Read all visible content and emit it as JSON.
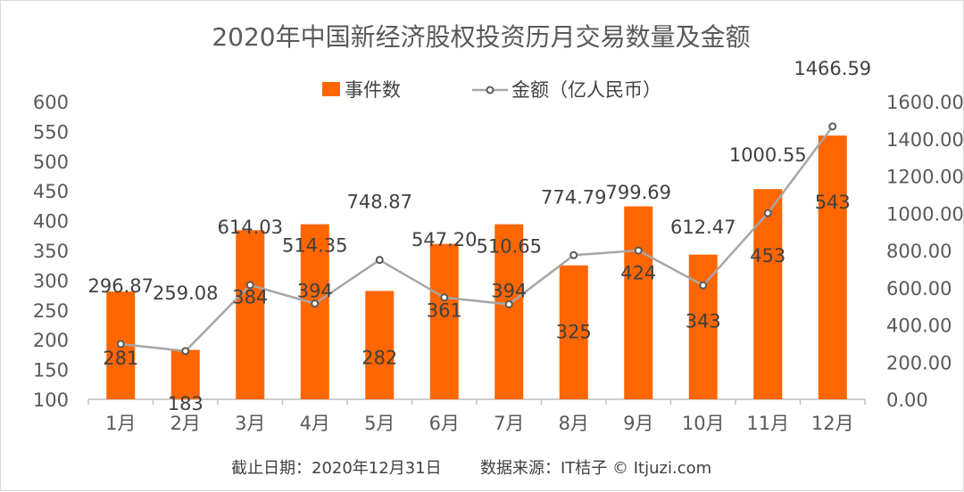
{
  "chart_data": {
    "type": "bar",
    "title": "2020年中国新经济股权投资历月交易数量及金额",
    "categories": [
      "1月",
      "2月",
      "3月",
      "4月",
      "5月",
      "6月",
      "7月",
      "8月",
      "9月",
      "10月",
      "11月",
      "12月"
    ],
    "series": [
      {
        "name": "事件数",
        "type": "bar",
        "axis": "left",
        "color": "#ff6600",
        "values": [
          281,
          183,
          384,
          394,
          282,
          361,
          394,
          325,
          424,
          343,
          453,
          543
        ]
      },
      {
        "name": "金额（亿人民币）",
        "type": "line",
        "axis": "right",
        "color": "#a6a6a6",
        "values": [
          296.87,
          259.08,
          614.03,
          514.35,
          748.87,
          547.2,
          510.65,
          774.79,
          799.69,
          612.47,
          1000.55,
          1466.59
        ],
        "labels": [
          "296.87",
          "259.08",
          "614.03",
          "514.35",
          "748.87",
          "547.20",
          "510.65",
          "774.79",
          "799.69",
          "612.47",
          "1000.55",
          "1466.59"
        ]
      }
    ],
    "y_left": {
      "min": 100,
      "max": 600,
      "step": 50,
      "ticks": [
        "100",
        "150",
        "200",
        "250",
        "300",
        "350",
        "400",
        "450",
        "500",
        "550",
        "600"
      ]
    },
    "y_right": {
      "min": 0,
      "max": 1600,
      "step": 200,
      "ticks": [
        "0.00",
        "200.00",
        "400.00",
        "600.00",
        "800.00",
        "1000.00",
        "1200.00",
        "1400.00",
        "1600.00"
      ]
    },
    "grid": false,
    "legend_position": "top-center"
  },
  "footer": {
    "date_text": "截止日期：2020年12月31日",
    "source_text": "数据来源：IT桔子 © Itjuzi.com"
  }
}
